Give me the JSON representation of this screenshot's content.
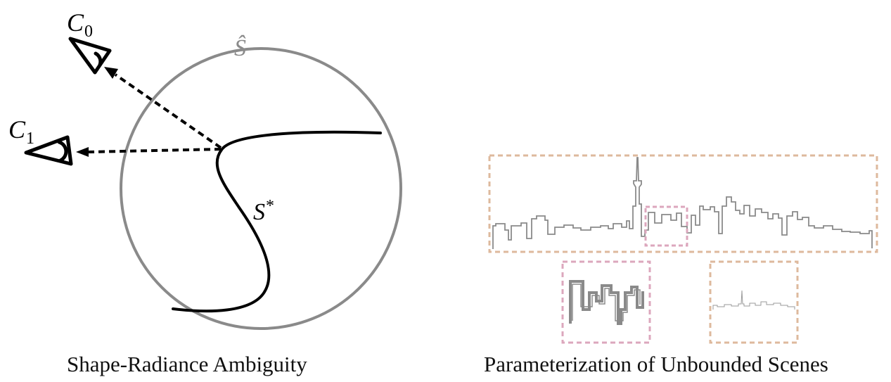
{
  "left_panel": {
    "caption": "Shape-Radiance Ambiguity",
    "camera_0_label": {
      "base": "C",
      "sub": "0"
    },
    "camera_1_label": {
      "base": "C",
      "sub": "1"
    },
    "outer_surface_label": "Ŝ",
    "true_surface_label": {
      "base": "S",
      "sup": "*"
    }
  },
  "right_panel": {
    "caption": "Parameterization of Unbounded Scenes"
  },
  "colors": {
    "sphere": "#8a8a8a",
    "surface": "#000000",
    "skyline": "#8a8a8a",
    "pink_box": "#dca7bd",
    "tan_box": "#deb99d"
  }
}
